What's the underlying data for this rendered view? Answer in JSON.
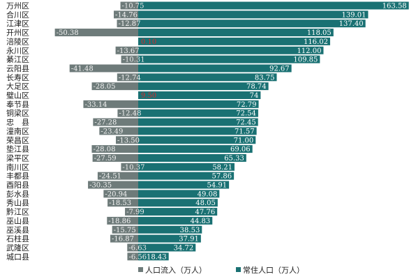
{
  "chart_data": {
    "type": "bar",
    "orientation": "horizontal-diverging",
    "categories": [
      "万州区",
      "合川区",
      "江津区",
      "开州区",
      "涪陵区",
      "永川区",
      "綦江区",
      "云阳县",
      "长寿区",
      "大足区",
      "璧山区",
      "奉节县",
      "铜梁区",
      "忠　县",
      "潼南区",
      "荣昌区",
      "垫江县",
      "梁平区",
      "南川区",
      "丰都县",
      "酉阳县",
      "彭水县",
      "秀山县",
      "黔江区",
      "巫山县",
      "巫溪县",
      "石柱县",
      "武隆区",
      "城口县"
    ],
    "series": [
      {
        "name": "人口流入（万人）",
        "color": "#6e7b7a",
        "highlight_color": "#f0727c",
        "values": [
          -10.75,
          -14.76,
          -12.87,
          -50.38,
          0.1,
          -13.67,
          -10.31,
          -41.48,
          -12.74,
          -28.05,
          9.5,
          -33.14,
          -12.48,
          -27.28,
          -23.49,
          -13.5,
          -28.08,
          -27.59,
          -10.37,
          -24.51,
          -30.35,
          -20.94,
          -18.53,
          -7.99,
          -18.86,
          -15.75,
          -16.87,
          -6.63,
          -6.56
        ],
        "labels": [
          "-10.75",
          "-14.76",
          "-12.87",
          "-50.38",
          "0.10",
          "-13.67",
          "-10.31",
          "-41.48",
          "-12.74",
          "-28.05",
          "9.50",
          "-33.14",
          "-12.48",
          "-27.28",
          "-23.49",
          "-13.50",
          "-28.08",
          "-27.59",
          "-10.37",
          "-24.51",
          "-30.35",
          "-20.94",
          "-18.53",
          "-7.99",
          "-18.86",
          "-15.75",
          "-16.87",
          "-6.63",
          "-6.56"
        ]
      },
      {
        "name": "常住人口（万人）",
        "color": "#1a7173",
        "values": [
          163.58,
          139.01,
          137.4,
          118.05,
          116.02,
          112.0,
          109.85,
          92.67,
          83.75,
          78.74,
          74,
          72.79,
          72.54,
          72.45,
          71.57,
          71.0,
          69.06,
          65.33,
          58.21,
          57.86,
          54.91,
          49.08,
          48.05,
          47.76,
          44.83,
          38.53,
          37.91,
          34.72,
          18.43
        ],
        "labels": [
          "163.58",
          "139.01",
          "137.40",
          "118.05",
          "116.02",
          "112.00",
          "109.85",
          "92.67",
          "83.75",
          "78.74",
          "74",
          "72.79",
          "72.54",
          "72.45",
          "71.57",
          "71.00",
          "69.06",
          "65.33",
          "58.21",
          "57.86",
          "54.91",
          "49.08",
          "48.05",
          "47.76",
          "44.83",
          "38.53",
          "37.91",
          "34.72",
          "18.43"
        ]
      }
    ],
    "title": "",
    "xlabel": "",
    "ylabel": "",
    "grid": false,
    "legend": "bottom"
  }
}
